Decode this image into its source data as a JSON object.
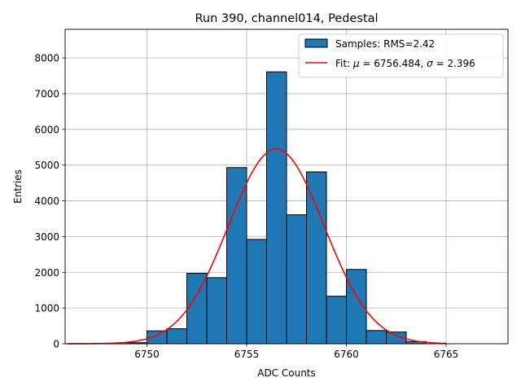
{
  "chart_data": {
    "type": "bar",
    "title": "Run 390, channel014, Pedestal",
    "xlabel": "ADC Counts",
    "ylabel": "Entries",
    "xlim": [
      6745.9,
      6768.1
    ],
    "ylim": [
      0,
      8800
    ],
    "grid": true,
    "legend_position": "top-right",
    "x_ticks": [
      6750,
      6755,
      6760,
      6765
    ],
    "x_tick_labels": [
      "6750",
      "6755",
      "6760",
      "6765"
    ],
    "y_ticks": [
      0,
      1000,
      2000,
      3000,
      4000,
      5000,
      6000,
      7000,
      8000
    ],
    "y_tick_labels": [
      "0",
      "1000",
      "2000",
      "3000",
      "4000",
      "5000",
      "6000",
      "7000",
      "8000"
    ],
    "histogram": {
      "name": "Samples: RMS=2.42",
      "bin_edges": [
        6746,
        6747,
        6748,
        6749,
        6750,
        6751,
        6752,
        6753,
        6754,
        6755,
        6756,
        6757,
        6758,
        6759,
        6760,
        6761,
        6762,
        6763,
        6764,
        6765,
        6766,
        6767
      ],
      "counts": [
        0,
        0,
        5,
        30,
        360,
        420,
        1970,
        1850,
        4930,
        2920,
        7610,
        3610,
        4810,
        1330,
        2080,
        370,
        330,
        60,
        0,
        0,
        0
      ],
      "color": "#1f77b4",
      "edgecolor": "#000000"
    },
    "fit": {
      "name_prefix": "Fit: ",
      "mu_symbol": "μ",
      "mu_text": " = 6756.484, ",
      "sigma_symbol": "σ",
      "sigma_text": " = 2.396",
      "mu": 6756.484,
      "sigma": 2.396,
      "amplitude": 5450,
      "x_range": [
        6746,
        6765
      ],
      "color": "#ff0000"
    }
  }
}
